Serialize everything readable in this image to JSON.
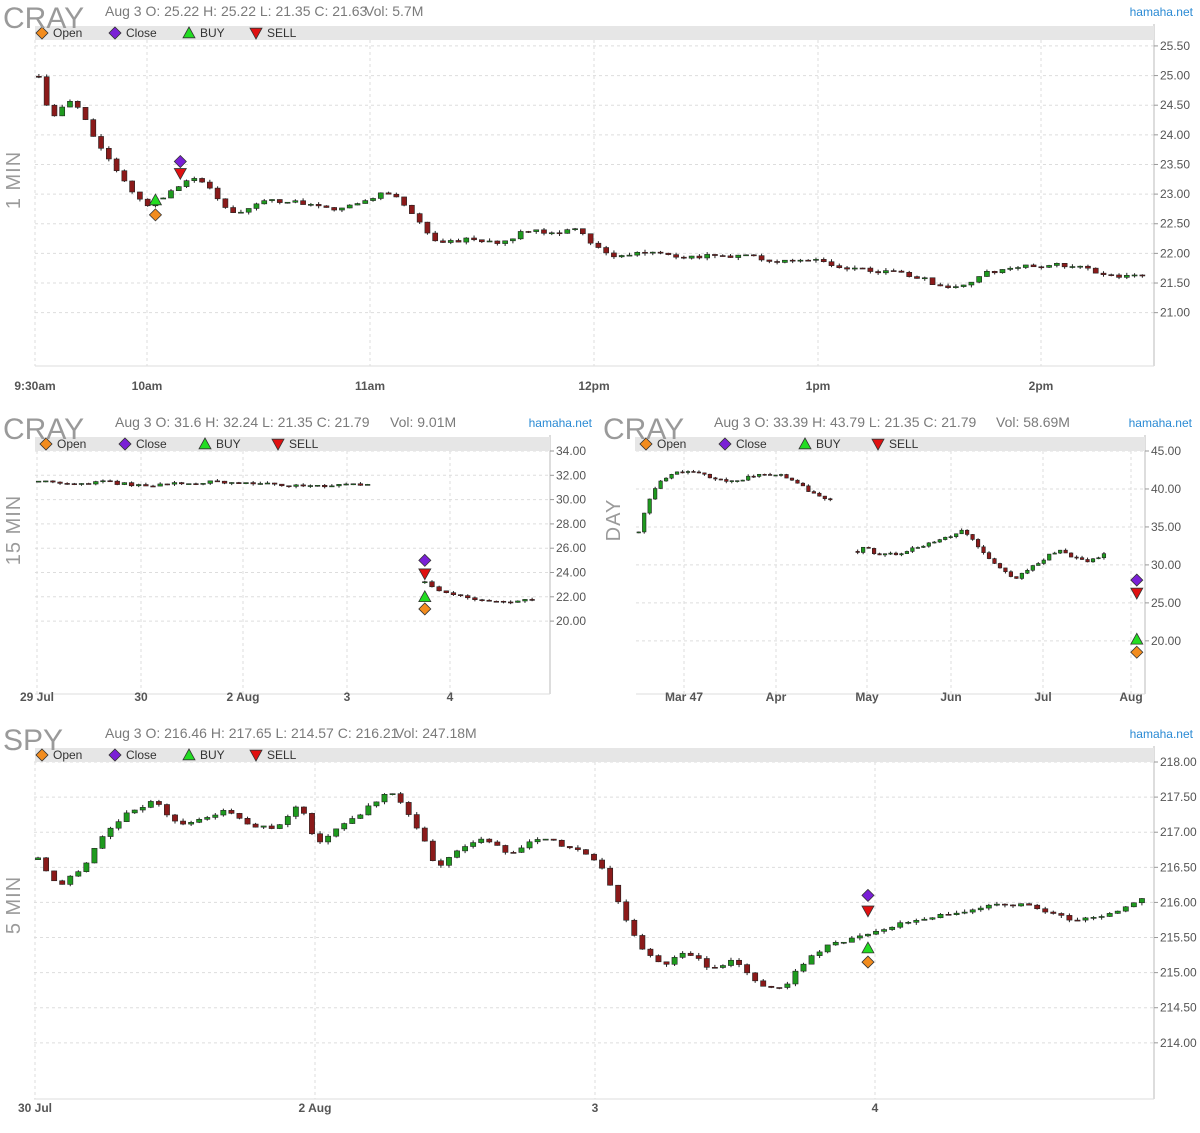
{
  "colors": {
    "up": "#1e9a1e",
    "down": "#8b1a1a",
    "open": "#f28c1e",
    "close": "#7a1fd6",
    "buy": "#22dd22",
    "sell": "#e01010",
    "brand": "#2a8ad4",
    "legend_bg": "#e6e6e6"
  },
  "legend": {
    "open": "Open",
    "close": "Close",
    "buy": "BUY",
    "sell": "SELL"
  },
  "chart_data": [
    {
      "id": "p1",
      "type": "candlestick",
      "ticker": "CRAY",
      "info": "Aug 3 O: 25.22 H: 25.22 L: 21.35 C: 21.63",
      "volume": "Vol: 5.7M",
      "brand": "hamaha.net",
      "timeframe": "1 MIN",
      "ylim": [
        20.1,
        25.6
      ],
      "yticks": [
        "21.00",
        "21.50",
        "22.00",
        "22.50",
        "23.00",
        "23.50",
        "24.00",
        "24.50",
        "25.00",
        "25.50"
      ],
      "xticks": [
        "9:30am",
        "10am",
        "11am",
        "12pm",
        "1pm",
        "2pm"
      ],
      "path": [
        [
          0,
          25.2
        ],
        [
          2,
          24.3
        ],
        [
          5,
          24.6
        ],
        [
          7,
          24.1
        ],
        [
          11,
          23.3
        ],
        [
          14,
          22.8
        ],
        [
          17,
          23.0
        ],
        [
          20,
          23.25
        ],
        [
          22,
          23.2
        ],
        [
          24,
          22.8
        ],
        [
          26,
          22.65
        ],
        [
          30,
          22.9
        ],
        [
          34,
          22.85
        ],
        [
          38,
          22.75
        ],
        [
          42,
          22.85
        ],
        [
          45,
          23.05
        ],
        [
          47,
          22.9
        ],
        [
          49,
          22.6
        ],
        [
          52,
          22.15
        ],
        [
          56,
          22.25
        ],
        [
          60,
          22.15
        ],
        [
          63,
          22.4
        ],
        [
          67,
          22.35
        ],
        [
          70,
          22.4
        ],
        [
          72,
          22.1
        ],
        [
          75,
          21.95
        ],
        [
          80,
          22.05
        ],
        [
          83,
          21.95
        ],
        [
          88,
          21.95
        ],
        [
          92,
          21.95
        ],
        [
          96,
          21.85
        ],
        [
          101,
          21.9
        ],
        [
          104,
          21.75
        ],
        [
          109,
          21.7
        ],
        [
          114,
          21.6
        ],
        [
          116,
          21.45
        ],
        [
          120,
          21.45
        ],
        [
          122,
          21.65
        ],
        [
          125,
          21.75
        ],
        [
          130,
          21.8
        ],
        [
          134,
          21.8
        ],
        [
          137,
          21.65
        ],
        [
          140,
          21.6
        ],
        [
          143,
          21.65
        ]
      ],
      "markers": [
        {
          "type": "close",
          "x": 18.2,
          "y": 23.55
        },
        {
          "type": "sell",
          "x": 18.2,
          "y": 23.35
        },
        {
          "type": "buy",
          "x": 15.0,
          "y": 22.9
        },
        {
          "type": "open",
          "x": 15.0,
          "y": 22.65
        }
      ]
    },
    {
      "id": "p2",
      "type": "candlestick",
      "ticker": "CRAY",
      "info": "Aug 3 O: 31.6 H: 32.24 L: 21.35 C: 21.79",
      "volume": "Vol: 9.01M",
      "brand": "hamaha.net",
      "timeframe": "15 MIN",
      "ylim": [
        14.0,
        34.0
      ],
      "yticks": [
        "20.00",
        "22.00",
        "24.00",
        "26.00",
        "28.00",
        "30.00",
        "32.00",
        "34.00"
      ],
      "xticks": [
        "29 Jul",
        "30",
        "2 Aug",
        "3",
        "4"
      ],
      "path": [
        [
          0,
          31.5
        ],
        [
          5,
          31.3
        ],
        [
          10,
          31.5
        ],
        [
          12,
          31.3
        ],
        [
          15,
          31.2
        ],
        [
          20,
          31.3
        ],
        [
          25,
          31.45
        ],
        [
          30,
          31.35
        ],
        [
          35,
          31.2
        ],
        [
          40,
          31.15
        ],
        [
          44,
          31.2
        ],
        [
          47,
          31.15
        ],
        [
          48,
          null
        ],
        [
          53.5,
          null
        ],
        [
          53.6,
          25.0
        ],
        [
          54.5,
          23.2
        ],
        [
          56,
          22.6
        ],
        [
          58,
          22.2
        ],
        [
          61,
          21.9
        ],
        [
          64,
          21.7
        ],
        [
          67,
          21.65
        ],
        [
          70,
          21.8
        ]
      ],
      "markers": [
        {
          "type": "close",
          "x": 54.0,
          "y": 25.0
        },
        {
          "type": "sell",
          "x": 54.0,
          "y": 23.9
        },
        {
          "type": "buy",
          "x": 54.0,
          "y": 22.0
        },
        {
          "type": "open",
          "x": 54.0,
          "y": 21.0
        }
      ]
    },
    {
      "id": "p3",
      "type": "candlestick",
      "ticker": "CRAY",
      "info": "Aug 3 O: 33.39 H: 43.79 L: 21.35 C: 21.79",
      "volume": "Vol: 58.69M",
      "brand": "hamaha.net",
      "timeframe": "DAY",
      "ylim": [
        13.0,
        45.0
      ],
      "yticks": [
        "20.00",
        "25.00",
        "30.00",
        "35.00",
        "40.00",
        "45.00"
      ],
      "xticks": [
        "Mar 47",
        "Apr",
        "May",
        "Jun",
        "Jul",
        "Aug"
      ],
      "path": [
        [
          0,
          33
        ],
        [
          2,
          38
        ],
        [
          4,
          41
        ],
        [
          7,
          42
        ],
        [
          10,
          42.5
        ],
        [
          14,
          41.5
        ],
        [
          18,
          41.0
        ],
        [
          22,
          41.8
        ],
        [
          26,
          42.0
        ],
        [
          29,
          41.0
        ],
        [
          31,
          40.0
        ],
        [
          34,
          39.0
        ],
        [
          36,
          38.5
        ],
        [
          38,
          null
        ],
        [
          39.5,
          null
        ],
        [
          39.6,
          30.5
        ],
        [
          41,
          32.5
        ],
        [
          44,
          31.5
        ],
        [
          48,
          31.5
        ],
        [
          52,
          32.5
        ],
        [
          56,
          33.5
        ],
        [
          60,
          34.5
        ],
        [
          62,
          33.0
        ],
        [
          64,
          31.0
        ],
        [
          67,
          29.5
        ],
        [
          69,
          28.0
        ],
        [
          71,
          29.0
        ],
        [
          74,
          30.5
        ],
        [
          77,
          32.0
        ],
        [
          80,
          31.0
        ],
        [
          83,
          30.5
        ],
        [
          86,
          31.5
        ],
        [
          88,
          null
        ],
        [
          90.6,
          null
        ],
        [
          90.7,
          27.0
        ],
        [
          91.2,
          22.0
        ]
      ],
      "markers": [
        {
          "type": "close",
          "x": 91.0,
          "y": 28.0
        },
        {
          "type": "sell",
          "x": 91.0,
          "y": 26.3
        },
        {
          "type": "buy",
          "x": 91.0,
          "y": 20.2
        },
        {
          "type": "open",
          "x": 91.0,
          "y": 18.5
        }
      ]
    },
    {
      "id": "p4",
      "type": "candlestick",
      "ticker": "SPY",
      "info": "Aug 3 O: 216.46 H: 217.65 L: 214.57 C: 216.21",
      "volume": "Vol: 247.18M",
      "brand": "hamaha.net",
      "timeframe": "5 MIN",
      "ylim": [
        213.2,
        218.0
      ],
      "yticks": [
        "214.00",
        "214.50",
        "215.00",
        "215.50",
        "216.00",
        "216.50",
        "217.00",
        "217.50",
        "218.00"
      ],
      "xticks": [
        "30 Jul",
        "2 Aug",
        "3",
        "4"
      ],
      "path": [
        [
          0,
          216.7
        ],
        [
          3,
          216.2
        ],
        [
          6,
          216.5
        ],
        [
          9,
          217.0
        ],
        [
          12,
          217.3
        ],
        [
          15,
          217.45
        ],
        [
          18,
          217.1
        ],
        [
          21,
          217.2
        ],
        [
          24,
          217.3
        ],
        [
          27,
          217.1
        ],
        [
          30,
          217.05
        ],
        [
          33,
          217.4
        ],
        [
          35,
          216.8
        ],
        [
          38,
          217.1
        ],
        [
          41,
          217.3
        ],
        [
          44,
          217.6
        ],
        [
          47,
          217.2
        ],
        [
          50,
          216.5
        ],
        [
          53,
          216.8
        ],
        [
          56,
          216.9
        ],
        [
          59,
          216.7
        ],
        [
          62,
          216.9
        ],
        [
          65,
          216.85
        ],
        [
          68,
          216.7
        ],
        [
          70,
          216.6
        ],
        [
          72,
          216.1
        ],
        [
          75,
          215.4
        ],
        [
          78,
          215.1
        ],
        [
          81,
          215.3
        ],
        [
          84,
          215.05
        ],
        [
          87,
          215.2
        ],
        [
          90,
          214.8
        ],
        [
          93,
          214.8
        ],
        [
          96,
          215.2
        ],
        [
          99,
          215.4
        ],
        [
          102,
          215.5
        ],
        [
          105,
          215.6
        ],
        [
          108,
          215.7
        ],
        [
          111,
          215.8
        ],
        [
          114,
          215.85
        ],
        [
          117,
          215.9
        ],
        [
          120,
          216.0
        ],
        [
          123,
          215.95
        ],
        [
          126,
          215.85
        ],
        [
          129,
          215.75
        ],
        [
          132,
          215.8
        ],
        [
          135,
          215.9
        ],
        [
          138,
          216.1
        ]
      ],
      "markers": [
        {
          "type": "close",
          "x": 103.0,
          "y": 216.1
        },
        {
          "type": "sell",
          "x": 103.0,
          "y": 215.88
        },
        {
          "type": "buy",
          "x": 103.0,
          "y": 215.35
        },
        {
          "type": "open",
          "x": 103.0,
          "y": 215.15
        }
      ]
    }
  ]
}
